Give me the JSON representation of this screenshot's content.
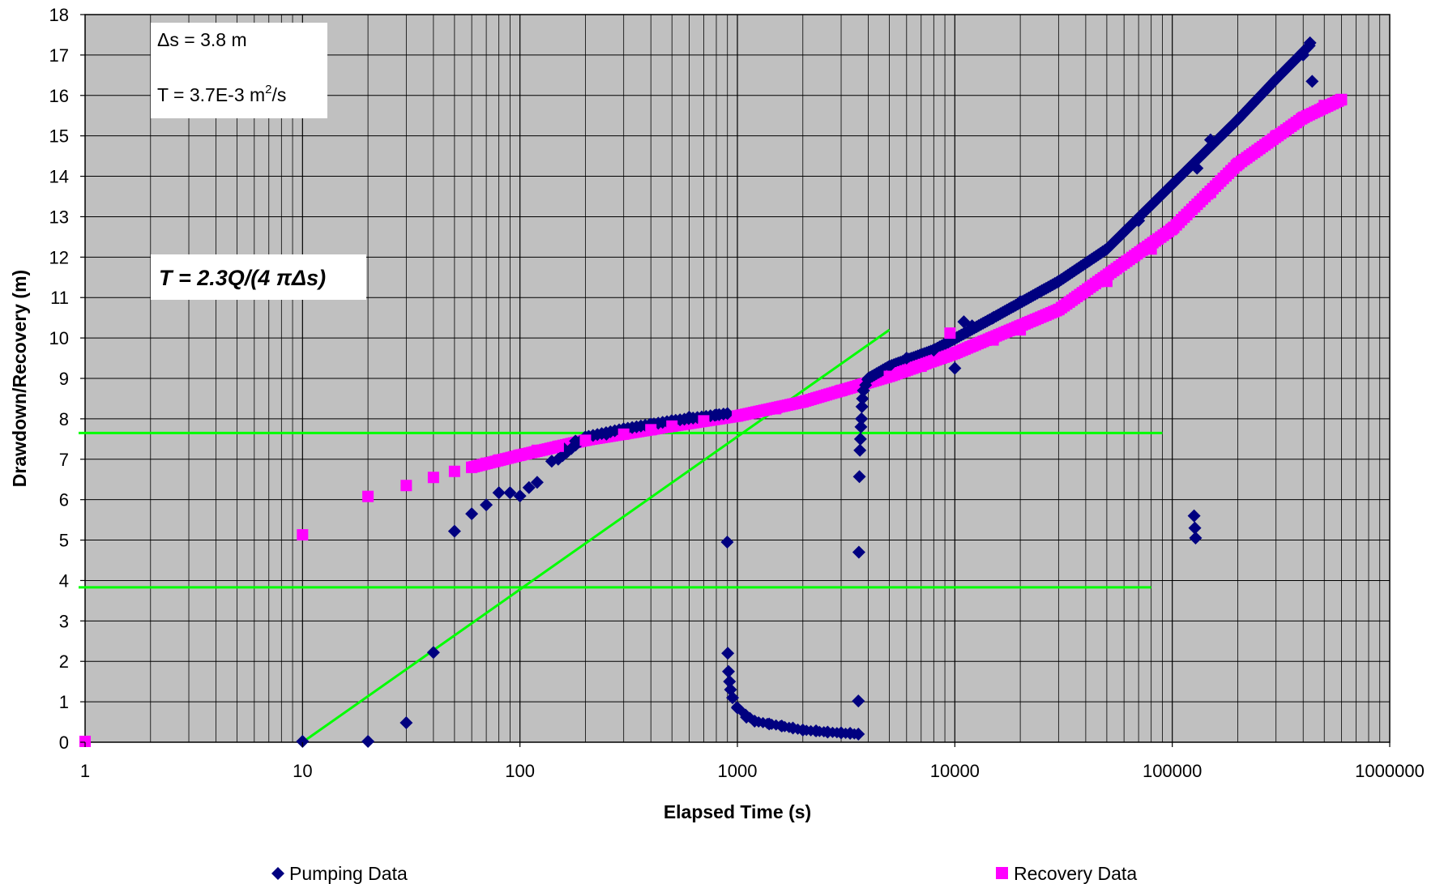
{
  "chart_data": {
    "type": "scatter",
    "xscale": "log",
    "xlim": [
      1,
      1000000
    ],
    "ylim": [
      0,
      18
    ],
    "xlabel": "Elapsed Time (s)",
    "ylabel": "Drawdown/Recovery (m)",
    "x_ticks": [
      "1",
      "10",
      "100",
      "1000",
      "10000",
      "100000",
      "1000000"
    ],
    "y_ticks": [
      "0",
      "1",
      "2",
      "3",
      "4",
      "5",
      "6",
      "7",
      "8",
      "9",
      "10",
      "11",
      "12",
      "13",
      "14",
      "15",
      "16",
      "17",
      "18"
    ],
    "grid": true,
    "plot_background": "#c0c0c0",
    "legend_position": "bottom",
    "annotations": {
      "delta_s_label": "Δs = 3.8 m",
      "transmissivity_prefix": "T = 3.7E-3 m",
      "transmissivity_sup": "2",
      "transmissivity_suffix": "/s",
      "formula": "T = 2.3Q/(4 πΔs)"
    },
    "series": [
      {
        "name": "Pumping Data",
        "marker": "diamond",
        "color": "#000080",
        "points": [
          [
            10,
            0.02
          ],
          [
            20,
            0.02
          ],
          [
            30,
            0.48
          ],
          [
            40,
            2.22
          ],
          [
            50,
            5.22
          ],
          [
            60,
            5.65
          ],
          [
            70,
            5.87
          ],
          [
            80,
            6.17
          ],
          [
            90,
            6.17
          ],
          [
            100,
            6.09
          ],
          [
            110,
            6.3
          ],
          [
            120,
            6.43
          ],
          [
            140,
            6.95
          ],
          [
            160,
            7.25
          ],
          [
            180,
            7.45
          ],
          [
            200,
            7.55
          ],
          [
            250,
            7.62
          ],
          [
            300,
            7.75
          ],
          [
            400,
            7.87
          ],
          [
            500,
            7.95
          ],
          [
            600,
            8.04
          ],
          [
            800,
            8.1
          ],
          [
            900,
            8.13
          ],
          [
            898,
            4.95
          ],
          [
            903,
            2.2
          ],
          [
            910,
            1.75
          ],
          [
            920,
            1.5
          ],
          [
            930,
            1.3
          ],
          [
            950,
            1.1
          ],
          [
            1000,
            0.85
          ],
          [
            1100,
            0.62
          ],
          [
            1200,
            0.52
          ],
          [
            1400,
            0.45
          ],
          [
            1600,
            0.4
          ],
          [
            1800,
            0.35
          ],
          [
            2000,
            0.3
          ],
          [
            2300,
            0.28
          ],
          [
            2600,
            0.25
          ],
          [
            3000,
            0.23
          ],
          [
            3300,
            0.22
          ],
          [
            3600,
            0.2
          ],
          [
            3600,
            1.02
          ],
          [
            3620,
            4.7
          ],
          [
            3640,
            6.57
          ],
          [
            3660,
            7.22
          ],
          [
            3680,
            7.5
          ],
          [
            3700,
            7.8
          ],
          [
            3720,
            8.0
          ],
          [
            3740,
            8.3
          ],
          [
            3760,
            8.5
          ],
          [
            3800,
            8.7
          ],
          [
            4000,
            9.0
          ],
          [
            5000,
            9.3
          ],
          [
            6000,
            9.5
          ],
          [
            8000,
            9.7
          ],
          [
            10000,
            9.25
          ],
          [
            11000,
            10.4
          ],
          [
            12000,
            10.3
          ],
          [
            15000,
            10.5
          ],
          [
            20000,
            10.9
          ],
          [
            30000,
            11.4
          ],
          [
            50000,
            12.2
          ],
          [
            70000,
            12.9
          ],
          [
            100000,
            13.8
          ],
          [
            130000,
            14.2
          ],
          [
            126000,
            5.6
          ],
          [
            127000,
            5.3
          ],
          [
            128000,
            5.05
          ],
          [
            150000,
            14.9
          ],
          [
            200000,
            15.4
          ],
          [
            300000,
            16.4
          ],
          [
            400000,
            17.0
          ],
          [
            430000,
            17.3
          ],
          [
            440000,
            16.35
          ]
        ]
      },
      {
        "name": "Recovery Data",
        "marker": "square",
        "color": "#ff00ff",
        "points": [
          [
            1,
            0.02
          ],
          [
            10,
            5.13
          ],
          [
            20,
            6.08
          ],
          [
            30,
            6.35
          ],
          [
            40,
            6.55
          ],
          [
            50,
            6.7
          ],
          [
            60,
            6.8
          ],
          [
            70,
            6.9
          ],
          [
            80,
            6.98
          ],
          [
            100,
            7.1
          ],
          [
            120,
            7.22
          ],
          [
            150,
            7.32
          ],
          [
            200,
            7.47
          ],
          [
            300,
            7.62
          ],
          [
            400,
            7.73
          ],
          [
            500,
            7.82
          ],
          [
            700,
            7.95
          ],
          [
            1000,
            8.07
          ],
          [
            1500,
            8.25
          ],
          [
            2000,
            8.42
          ],
          [
            3000,
            8.7
          ],
          [
            5000,
            9.05
          ],
          [
            9500,
            10.12
          ],
          [
            7000,
            9.3
          ],
          [
            10000,
            9.62
          ],
          [
            15000,
            9.95
          ],
          [
            20000,
            10.2
          ],
          [
            30000,
            10.7
          ],
          [
            50000,
            11.4
          ],
          [
            80000,
            12.2
          ],
          [
            100000,
            12.7
          ],
          [
            150000,
            13.6
          ],
          [
            200000,
            14.3
          ],
          [
            300000,
            15.0
          ],
          [
            400000,
            15.45
          ],
          [
            500000,
            15.75
          ],
          [
            600000,
            15.9
          ]
        ]
      }
    ],
    "lines": [
      {
        "type": "horizontal",
        "y": 7.65,
        "x_start": 1,
        "x_end": 90000,
        "color": "#00ff00"
      },
      {
        "type": "horizontal",
        "y": 3.83,
        "x_start": 1,
        "x_end": 80000,
        "color": "#00ff00"
      },
      {
        "type": "fit",
        "points": [
          [
            10,
            0.0
          ],
          [
            5000,
            10.2
          ]
        ],
        "color": "#00ff00"
      }
    ]
  }
}
